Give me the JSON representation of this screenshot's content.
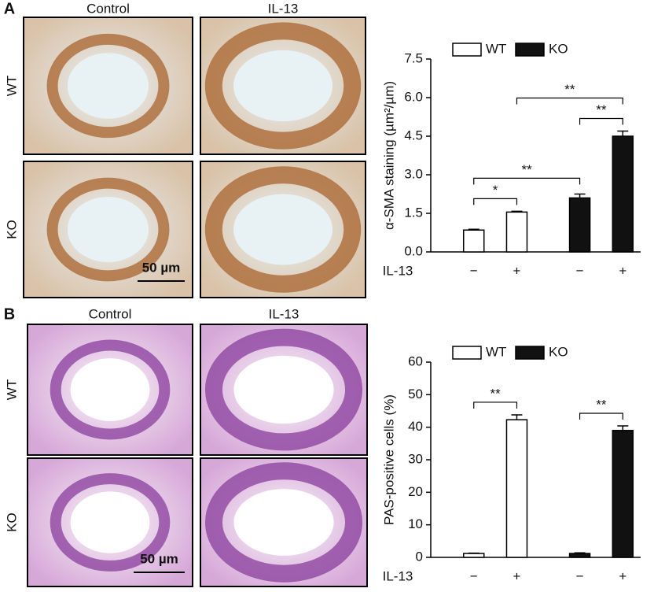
{
  "panels": [
    {
      "label": "A",
      "column_labels": [
        "Control",
        "IL-13"
      ],
      "row_labels": [
        "WT",
        "KO"
      ],
      "scale_bar": "50 µm"
    },
    {
      "label": "B",
      "column_labels": [
        "Control",
        "IL-13"
      ],
      "row_labels": [
        "WT",
        "KO"
      ],
      "scale_bar": "50 µm"
    }
  ],
  "chart_data": [
    {
      "type": "bar",
      "ylabel": "α-SMA staining (µm²/µm)",
      "xlabel": "IL-13",
      "categories": [
        "−",
        "+",
        "−",
        "+"
      ],
      "series": [
        {
          "name": "WT",
          "color": "#ffffff",
          "values": [
            0.85,
            1.55,
            null,
            null
          ],
          "errors": [
            0.03,
            0.03,
            null,
            null
          ]
        },
        {
          "name": "KO",
          "color": "#111111",
          "values": [
            null,
            null,
            2.1,
            4.5
          ],
          "errors": [
            null,
            null,
            0.15,
            0.2
          ]
        }
      ],
      "ylim": [
        0,
        7.5
      ],
      "yticks": [
        {
          "value": 0,
          "label": "0.0"
        },
        1.5,
        {
          "value": 3,
          "label": "3.0"
        },
        4.5,
        {
          "value": 6,
          "label": "6.0"
        },
        7.5
      ],
      "legend": "upper left",
      "significance": [
        {
          "from": 0,
          "to": 1,
          "label": "*"
        },
        {
          "from": 0,
          "to": 2,
          "label": "**"
        },
        {
          "from": 2,
          "to": 3,
          "label": "**"
        },
        {
          "from": 1,
          "to": 3,
          "label": "**"
        }
      ]
    },
    {
      "type": "bar",
      "ylabel": "PAS-positive cells (%)",
      "xlabel": "IL-13",
      "categories": [
        "−",
        "+",
        "−",
        "+"
      ],
      "series": [
        {
          "name": "WT",
          "color": "#ffffff",
          "values": [
            1.2,
            42.3,
            null,
            null
          ],
          "errors": [
            0.1,
            1.5,
            null,
            null
          ]
        },
        {
          "name": "KO",
          "color": "#111111",
          "values": [
            null,
            null,
            1.2,
            39
          ],
          "errors": [
            null,
            null,
            0.2,
            1.4
          ]
        }
      ],
      "ylim": [
        0,
        60
      ],
      "yticks": [
        0,
        10,
        20,
        30,
        40,
        50,
        60
      ],
      "legend": "upper left",
      "significance": [
        {
          "from": 0,
          "to": 1,
          "label": "**"
        },
        {
          "from": 2,
          "to": 3,
          "label": "**"
        }
      ]
    }
  ]
}
